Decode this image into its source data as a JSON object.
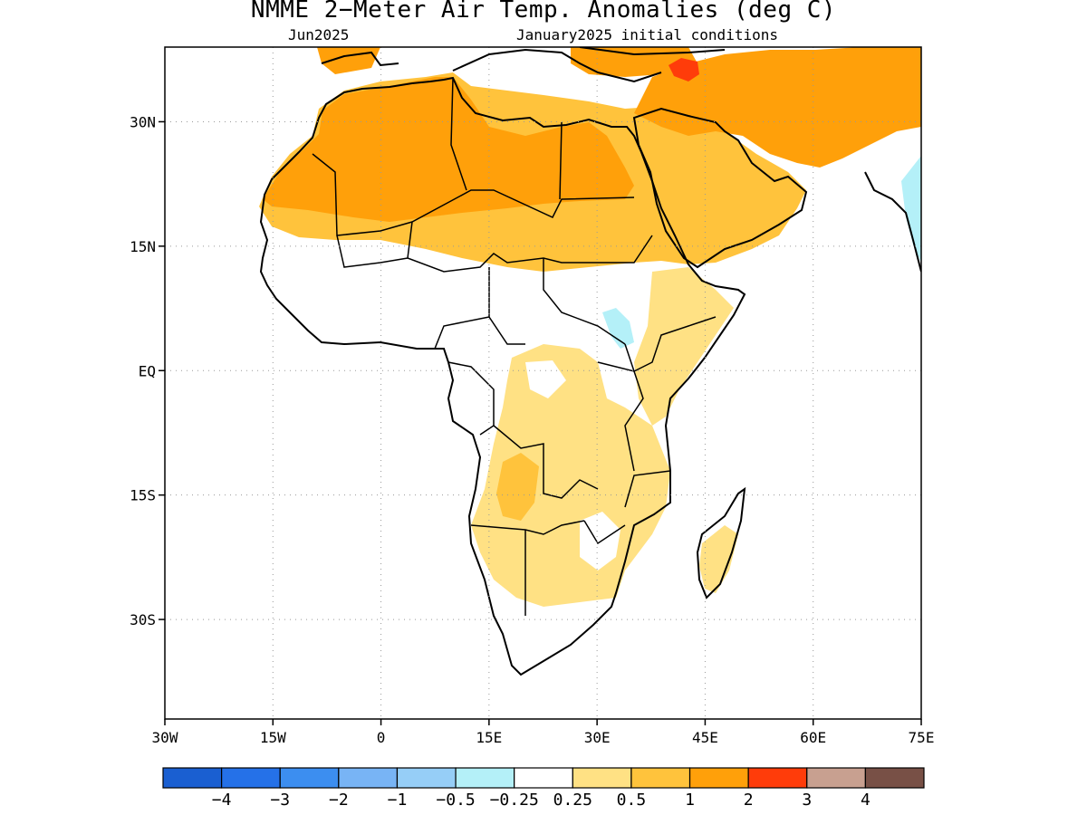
{
  "title": "NMME 2−Meter Air Temp. Anomalies (deg C)",
  "valid_month": "Jun2025",
  "init_label": "January2025 initial conditions",
  "map": {
    "lat_range": [
      -42,
      39
    ],
    "lon_range": [
      -30,
      75
    ],
    "lat_ticks": [
      {
        "label": "30N",
        "lat": 30
      },
      {
        "label": "15N",
        "lat": 15
      },
      {
        "label": "EQ",
        "lat": 0
      },
      {
        "label": "15S",
        "lat": -15
      },
      {
        "label": "30S",
        "lat": -30
      }
    ],
    "lon_ticks": [
      {
        "label": "30W",
        "lon": -30
      },
      {
        "label": "15W",
        "lon": -15
      },
      {
        "label": "0",
        "lon": 0
      },
      {
        "label": "15E",
        "lon": 15
      },
      {
        "label": "30E",
        "lon": 30
      },
      {
        "label": "45E",
        "lon": 45
      },
      {
        "label": "60E",
        "lon": 60
      },
      {
        "label": "75E",
        "lon": 75
      }
    ],
    "grid_lines": "dotted"
  },
  "colorbar": {
    "colors": [
      "#1a5fd1",
      "#2571e8",
      "#3c8ef0",
      "#78b4f5",
      "#96cef7",
      "#b4f0f8",
      "#ffffff",
      "#ffe184",
      "#ffc33c",
      "#ffa00a",
      "#ff3c0a",
      "#c8a090",
      "#785046"
    ],
    "labels": [
      "−4",
      "−3",
      "−2",
      "−1",
      "−0.5",
      "−0.25",
      "0.25",
      "0.5",
      "1",
      "2",
      "3",
      "4"
    ]
  }
}
